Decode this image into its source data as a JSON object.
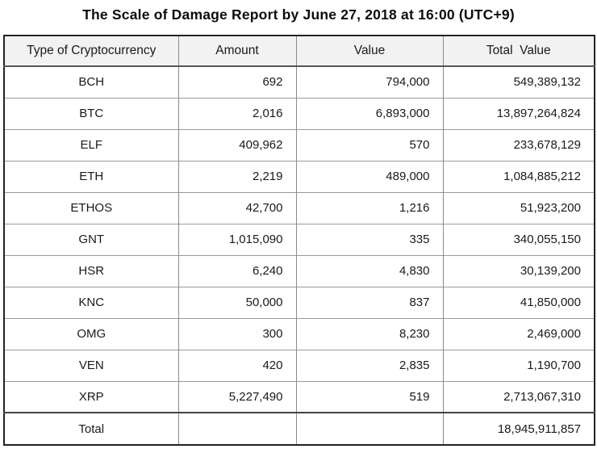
{
  "title": "The Scale of Damage Report by June 27, 2018 at 16:00 (UTC+9)",
  "table": {
    "columns": [
      "Type of Cryptocurrency",
      "Amount",
      "Value",
      "Total  Value"
    ],
    "rows": [
      {
        "type": "BCH",
        "amount": "692",
        "value": "794,000",
        "total": "549,389,132"
      },
      {
        "type": "BTC",
        "amount": "2,016",
        "value": "6,893,000",
        "total": "13,897,264,824"
      },
      {
        "type": "ELF",
        "amount": "409,962",
        "value": "570",
        "total": "233,678,129"
      },
      {
        "type": "ETH",
        "amount": "2,219",
        "value": "489,000",
        "total": "1,084,885,212"
      },
      {
        "type": "ETHOS",
        "amount": "42,700",
        "value": "1,216",
        "total": "51,923,200"
      },
      {
        "type": "GNT",
        "amount": "1,015,090",
        "value": "335",
        "total": "340,055,150"
      },
      {
        "type": "HSR",
        "amount": "6,240",
        "value": "4,830",
        "total": "30,139,200"
      },
      {
        "type": "KNC",
        "amount": "50,000",
        "value": "837",
        "total": "41,850,000"
      },
      {
        "type": "OMG",
        "amount": "300",
        "value": "8,230",
        "total": "2,469,000"
      },
      {
        "type": "VEN",
        "amount": "420",
        "value": "2,835",
        "total": "1,190,700"
      },
      {
        "type": "XRP",
        "amount": "5,227,490",
        "value": "519",
        "total": "2,713,067,310"
      }
    ],
    "total_row": {
      "label": "Total",
      "amount": "",
      "value": "",
      "total": "18,945,911,857"
    }
  },
  "chart_data": {
    "type": "table",
    "title": "The Scale of Damage Report by June 27, 2018 at 16:00 (UTC+9)",
    "columns": [
      "Type of Cryptocurrency",
      "Amount",
      "Value",
      "Total Value"
    ],
    "rows": [
      [
        "BCH",
        692,
        794000,
        549389132
      ],
      [
        "BTC",
        2016,
        6893000,
        13897264824
      ],
      [
        "ELF",
        409962,
        570,
        233678129
      ],
      [
        "ETH",
        2219,
        489000,
        1084885212
      ],
      [
        "ETHOS",
        42700,
        1216,
        51923200
      ],
      [
        "GNT",
        1015090,
        335,
        340055150
      ],
      [
        "HSR",
        6240,
        4830,
        30139200
      ],
      [
        "KNC",
        50000,
        837,
        41850000
      ],
      [
        "OMG",
        300,
        8230,
        2469000
      ],
      [
        "VEN",
        420,
        2835,
        1190700
      ],
      [
        "XRP",
        5227490,
        519,
        2713067310
      ]
    ],
    "total": 18945911857,
    "layout": {
      "header_background": "#f2f2f2",
      "outer_border": "#222222",
      "grid_line": "#9a9a9a",
      "text_color": "#1a1a1a"
    }
  }
}
